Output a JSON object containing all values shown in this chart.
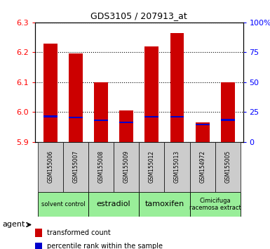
{
  "title": "GDS3105 / 207913_at",
  "samples": [
    "GSM155006",
    "GSM155007",
    "GSM155008",
    "GSM155009",
    "GSM155012",
    "GSM155013",
    "GSM154972",
    "GSM155005"
  ],
  "red_values": [
    6.23,
    6.195,
    6.1,
    6.005,
    6.22,
    6.265,
    5.965,
    6.1
  ],
  "blue_values": [
    5.985,
    5.982,
    5.972,
    5.965,
    5.984,
    5.984,
    5.958,
    5.974
  ],
  "ymin": 5.9,
  "ymax": 6.3,
  "y2min": 0,
  "y2max": 100,
  "yticks": [
    5.9,
    6.0,
    6.1,
    6.2,
    6.3
  ],
  "y2ticks": [
    0,
    25,
    50,
    75,
    100
  ],
  "agent_groups": [
    {
      "label": "solvent control",
      "start": 0,
      "end": 2,
      "fontsize": 6
    },
    {
      "label": "estradiol",
      "start": 2,
      "end": 4,
      "fontsize": 8
    },
    {
      "label": "tamoxifen",
      "start": 4,
      "end": 6,
      "fontsize": 8
    },
    {
      "label": "Cimicifuga\nracemosa extract",
      "start": 6,
      "end": 8,
      "fontsize": 6
    }
  ],
  "group_bg_color": "#99ee99",
  "sample_bg_color": "#cccccc",
  "bar_color_red": "#cc0000",
  "bar_color_blue": "#0000cc",
  "bar_width": 0.55,
  "legend_red": "transformed count",
  "legend_blue": "percentile rank within the sample",
  "agent_label": "agent"
}
